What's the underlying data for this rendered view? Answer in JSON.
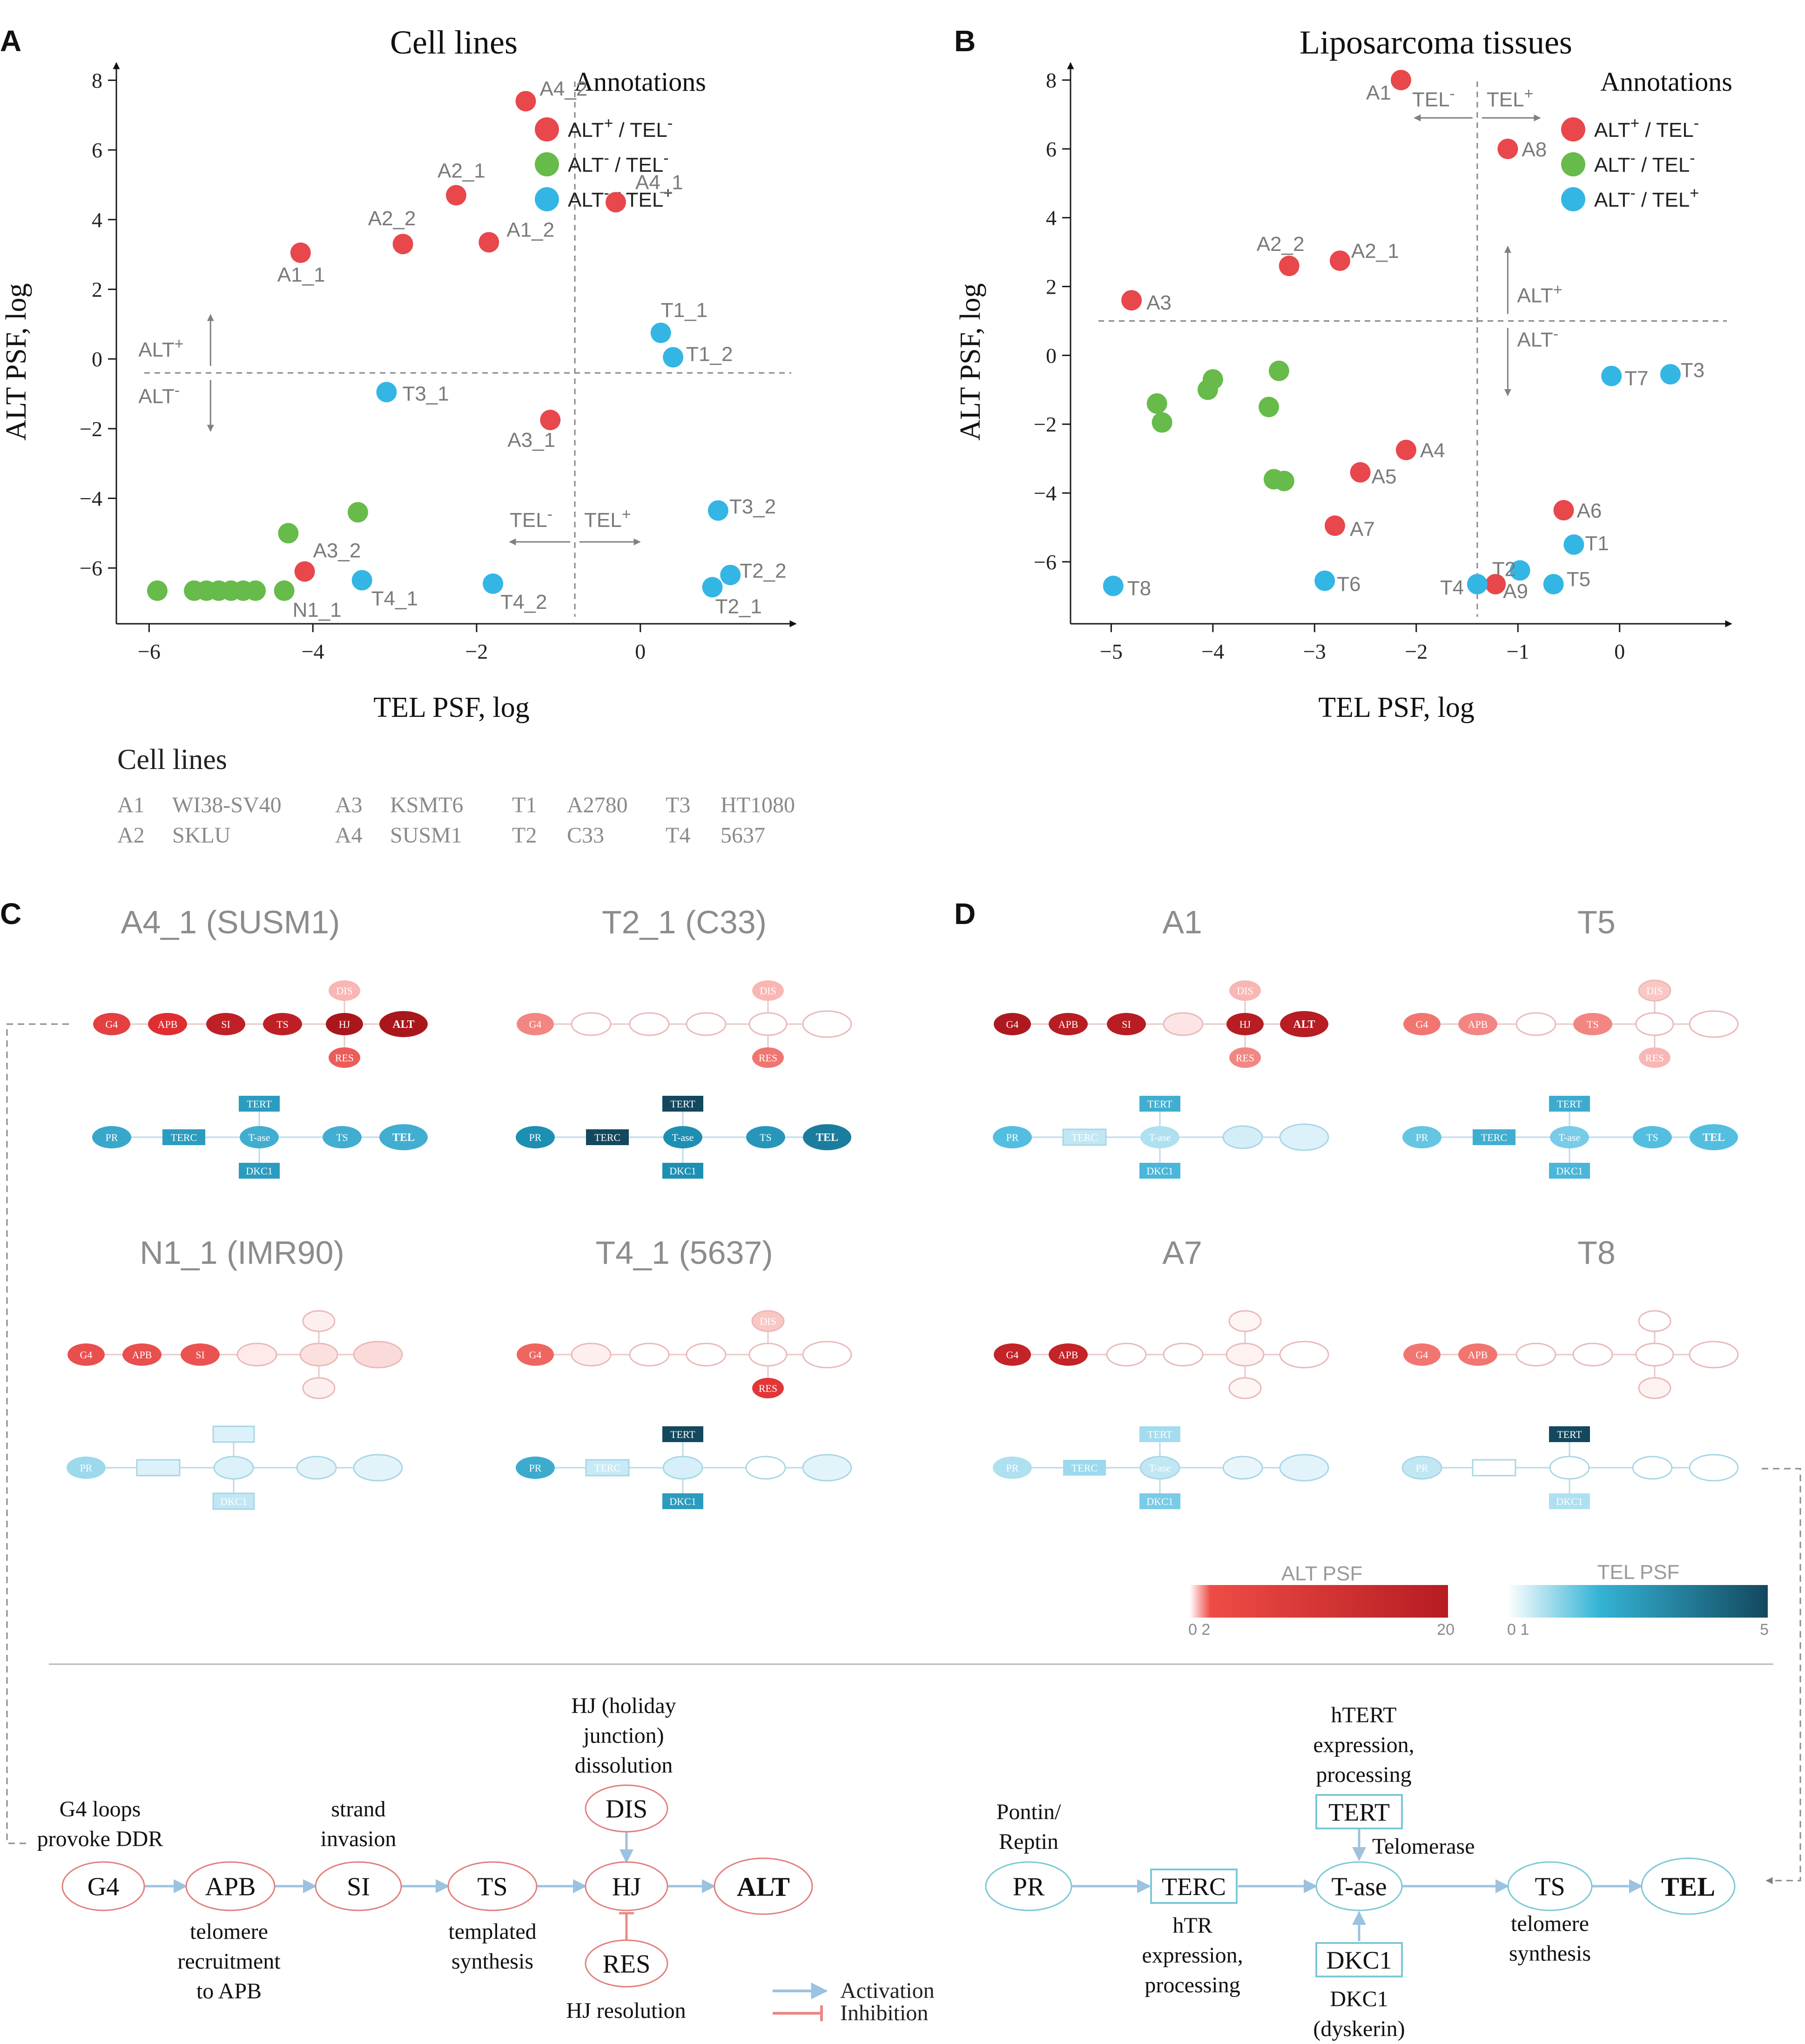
{
  "colors": {
    "alt_pos": "#e8474b",
    "alt_neg_tel_neg": "#66bb4a",
    "tel_pos": "#34b6e4",
    "axis": "#1a1a1a",
    "gray_text": "#7a7a7a",
    "dash": "#888888",
    "alt_dark": "#b71c22",
    "tel_dark": "#13485e"
  },
  "panel_letters": {
    "a": "A",
    "b": "B",
    "c": "C",
    "d": "D"
  },
  "chart_data": [
    {
      "type": "scatter",
      "title": "Cell lines",
      "xlabel": "TEL PSF, log",
      "ylabel": "ALT PSF, log",
      "xlim": [
        -6.4,
        1.9
      ],
      "ylim": [
        -7.6,
        8.5
      ],
      "xticks": [
        -6,
        -4,
        -2,
        0
      ],
      "yticks": [
        8,
        6,
        4,
        2,
        0,
        -2,
        -4,
        -6
      ],
      "xtick_labels": [
        "−6",
        "−4",
        "−2",
        "0"
      ],
      "ytick_labels": [
        "8",
        "6",
        "4",
        "2",
        "0",
        "−2",
        "−4",
        "−6"
      ],
      "thresholds": {
        "x": -0.8,
        "y": -0.4
      },
      "quadrant_labels": {
        "alt_plus": "ALT",
        "alt_minus": "ALT",
        "tel_minus": "TEL",
        "tel_plus": "TEL",
        "plus": "+",
        "minus": "-"
      },
      "legend": {
        "title": "Annotations",
        "entries": [
          {
            "group": "alt_pos",
            "alt": "ALT",
            "alt_sign": "+",
            "tel": "/ TEL",
            "tel_sign": "-"
          },
          {
            "group": "alt_neg_tel_neg",
            "alt": "ALT",
            "alt_sign": "-",
            "tel": "/ TEL",
            "tel_sign": "-"
          },
          {
            "group": "tel_pos",
            "alt": "ALT",
            "alt_sign": "-",
            "tel": "/ TEL",
            "tel_sign": "+"
          }
        ]
      },
      "series": [
        {
          "name": "ALT+/TEL-",
          "group": "alt_pos",
          "points": [
            {
              "x": -1.4,
              "y": 7.4,
              "label": "A4_2"
            },
            {
              "x": -0.3,
              "y": 4.5,
              "label": "A4_1"
            },
            {
              "x": -2.25,
              "y": 4.7,
              "label": "A2_1"
            },
            {
              "x": -1.85,
              "y": 3.35,
              "label": "A1_2"
            },
            {
              "x": -2.9,
              "y": 3.3,
              "label": "A2_2"
            },
            {
              "x": -4.15,
              "y": 3.05,
              "label": "A1_1"
            },
            {
              "x": -1.1,
              "y": -1.75,
              "label": "A3_1"
            },
            {
              "x": -4.1,
              "y": -6.1,
              "label": "A3_2"
            }
          ]
        },
        {
          "name": "ALT-/TEL-",
          "group": "alt_neg_tel_neg",
          "points": [
            {
              "x": -3.45,
              "y": -4.4,
              "label": ""
            },
            {
              "x": -4.3,
              "y": -5.0,
              "label": ""
            },
            {
              "x": -4.35,
              "y": -6.65,
              "label": "N1_1"
            },
            {
              "x": -5.9,
              "y": -6.65,
              "label": ""
            },
            {
              "x": -5.45,
              "y": -6.65,
              "label": ""
            },
            {
              "x": -5.3,
              "y": -6.65,
              "label": ""
            },
            {
              "x": -5.15,
              "y": -6.65,
              "label": ""
            },
            {
              "x": -5.0,
              "y": -6.65,
              "label": ""
            },
            {
              "x": -4.85,
              "y": -6.65,
              "label": ""
            },
            {
              "x": -4.7,
              "y": -6.65,
              "label": ""
            }
          ]
        },
        {
          "name": "ALT-/TEL+",
          "group": "tel_pos",
          "points": [
            {
              "x": 0.25,
              "y": 0.75,
              "label": "T1_1"
            },
            {
              "x": 0.4,
              "y": 0.05,
              "label": "T1_2"
            },
            {
              "x": -3.1,
              "y": -0.95,
              "label": "T3_1"
            },
            {
              "x": 0.95,
              "y": -4.35,
              "label": "T3_2"
            },
            {
              "x": 1.1,
              "y": -6.2,
              "label": "T2_2"
            },
            {
              "x": 0.88,
              "y": -6.55,
              "label": "T2_1"
            },
            {
              "x": -3.4,
              "y": -6.35,
              "label": "T4_1"
            },
            {
              "x": -1.8,
              "y": -6.45,
              "label": "T4_2"
            }
          ]
        }
      ]
    },
    {
      "type": "scatter",
      "title": "Liposarcoma tissues",
      "xlabel": "TEL PSF, log",
      "ylabel": "ALT PSF, log",
      "xlim": [
        -5.4,
        1.1
      ],
      "ylim": [
        -7.8,
        8.5
      ],
      "xticks": [
        -5,
        -4,
        -3,
        -2,
        -1,
        0
      ],
      "yticks": [
        8,
        6,
        4,
        2,
        0,
        -2,
        -4,
        -6
      ],
      "xtick_labels": [
        "−5",
        "−4",
        "−3",
        "−2",
        "−1",
        "0"
      ],
      "ytick_labels": [
        "8",
        "6",
        "4",
        "2",
        "0",
        "−2",
        "−4",
        "−6"
      ],
      "thresholds": {
        "x": -1.4,
        "y": 1.0
      },
      "quadrant_labels": {
        "alt_plus": "ALT",
        "alt_minus": "ALT",
        "tel_minus": "TEL",
        "tel_plus": "TEL",
        "plus": "+",
        "minus": "-"
      },
      "legend": {
        "title": "Annotations",
        "entries": [
          {
            "group": "alt_pos",
            "alt": "ALT",
            "alt_sign": "+",
            "tel": "/ TEL",
            "tel_sign": "-"
          },
          {
            "group": "alt_neg_tel_neg",
            "alt": "ALT",
            "alt_sign": "-",
            "tel": "/ TEL",
            "tel_sign": "-"
          },
          {
            "group": "tel_pos",
            "alt": "ALT",
            "alt_sign": "-",
            "tel": "/ TEL",
            "tel_sign": "+"
          }
        ]
      },
      "series": [
        {
          "name": "ALT+/TEL-",
          "group": "alt_pos",
          "points": [
            {
              "x": -2.15,
              "y": 8.0,
              "label": "A1"
            },
            {
              "x": -1.1,
              "y": 6.0,
              "label": "A8"
            },
            {
              "x": -3.25,
              "y": 2.6,
              "label": "A2_2"
            },
            {
              "x": -2.75,
              "y": 2.75,
              "label": "A2_1"
            },
            {
              "x": -4.8,
              "y": 1.6,
              "label": "A3"
            },
            {
              "x": -2.1,
              "y": -2.75,
              "label": "A4"
            },
            {
              "x": -2.55,
              "y": -3.4,
              "label": "A5"
            },
            {
              "x": -2.8,
              "y": -4.95,
              "label": "A7"
            },
            {
              "x": -0.55,
              "y": -4.5,
              "label": "A6"
            },
            {
              "x": -1.22,
              "y": -6.65,
              "label": "A9"
            }
          ]
        },
        {
          "name": "ALT-/TEL-",
          "group": "alt_neg_tel_neg",
          "points": [
            {
              "x": -4.0,
              "y": -0.7,
              "label": ""
            },
            {
              "x": -4.05,
              "y": -1.0,
              "label": ""
            },
            {
              "x": -3.35,
              "y": -0.45,
              "label": ""
            },
            {
              "x": -4.55,
              "y": -1.4,
              "label": ""
            },
            {
              "x": -4.5,
              "y": -1.95,
              "label": ""
            },
            {
              "x": -3.45,
              "y": -1.5,
              "label": ""
            },
            {
              "x": -3.4,
              "y": -3.6,
              "label": ""
            },
            {
              "x": -3.3,
              "y": -3.65,
              "label": ""
            }
          ]
        },
        {
          "name": "ALT-/TEL+",
          "group": "tel_pos",
          "points": [
            {
              "x": -0.08,
              "y": -0.6,
              "label": "T7"
            },
            {
              "x": 0.5,
              "y": -0.55,
              "label": "T3"
            },
            {
              "x": -0.45,
              "y": -5.5,
              "label": "T1"
            },
            {
              "x": -0.98,
              "y": -6.25,
              "label": "T2"
            },
            {
              "x": -0.65,
              "y": -6.65,
              "label": "T5"
            },
            {
              "x": -2.9,
              "y": -6.55,
              "label": "T6"
            },
            {
              "x": -1.4,
              "y": -6.65,
              "label": "T4"
            },
            {
              "x": -4.98,
              "y": -6.7,
              "label": "T8"
            }
          ]
        }
      ]
    }
  ],
  "cell_lines_table": {
    "title": "Cell lines",
    "entries": [
      {
        "code": "A1",
        "name": "WI38-SV40"
      },
      {
        "code": "A2",
        "name": "SKLU"
      },
      {
        "code": "A3",
        "name": "KSMT6"
      },
      {
        "code": "A4",
        "name": "SUSM1"
      },
      {
        "code": "T1",
        "name": "A2780"
      },
      {
        "code": "T2",
        "name": "C33"
      },
      {
        "code": "T3",
        "name": "HT1080"
      },
      {
        "code": "T4",
        "name": "5637"
      }
    ]
  },
  "mini_networks": {
    "alt_node_labels": {
      "g4": "G4",
      "apb": "APB",
      "si": "SI",
      "ts": "TS",
      "hj": "HJ",
      "alt": "ALT",
      "dis": "DIS",
      "res": "RES"
    },
    "tel_node_labels": {
      "pr": "PR",
      "terc": "TERC",
      "tase": "T-ase",
      "ts": "TS",
      "tel": "TEL",
      "tert": "TERT",
      "dkc1": "DKC1"
    },
    "panels": [
      {
        "title": "A4_1 (SUSM1)",
        "alt": {
          "g4": 0.7,
          "apb": 0.8,
          "si": 0.92,
          "ts": 0.92,
          "hj": 1.0,
          "alt": 1.0,
          "dis": 0.25,
          "res": 0.55
        },
        "tel": {
          "pr": 0.65,
          "terc": 0.72,
          "tase": 0.6,
          "ts": 0.6,
          "tel": 0.6,
          "tert": 0.72,
          "dkc1": 0.72
        }
      },
      {
        "title": "T2_1 (C33)",
        "alt": {
          "g4": 0.4,
          "apb": 0.0,
          "si": 0.0,
          "ts": 0.0,
          "hj": 0.0,
          "alt": 0.0,
          "dis": 0.25,
          "res": 0.45
        },
        "tel": {
          "pr": 0.8,
          "terc": 1.0,
          "tase": 0.8,
          "ts": 0.75,
          "tel": 0.85,
          "tert": 1.0,
          "dkc1": 0.8
        }
      },
      {
        "title": "N1_1 (IMR90)",
        "alt": {
          "g4": 0.62,
          "apb": 0.62,
          "si": 0.6,
          "ts": 0.08,
          "hj": 0.12,
          "alt": 0.14,
          "dis": 0.06,
          "res": 0.06
        },
        "tel": {
          "pr": 0.3,
          "terc": 0.12,
          "tase": 0.12,
          "ts": 0.1,
          "tel": 0.1,
          "tert": 0.12,
          "dkc1": 0.2
        }
      },
      {
        "title": "T4_1 (5637)",
        "alt": {
          "g4": 0.5,
          "apb": 0.06,
          "si": 0.0,
          "ts": 0.0,
          "hj": 0.0,
          "alt": 0.0,
          "dis": 0.2,
          "res": 0.75
        },
        "tel": {
          "pr": 0.62,
          "terc": 0.18,
          "tase": 0.14,
          "ts": 0.0,
          "tel": 0.1,
          "tert": 1.0,
          "dkc1": 0.72
        }
      },
      {
        "title": "A1",
        "alt": {
          "g4": 0.98,
          "apb": 0.95,
          "si": 0.95,
          "ts": 0.1,
          "hj": 0.95,
          "alt": 0.95,
          "dis": 0.25,
          "res": 0.4
        },
        "tel": {
          "pr": 0.5,
          "terc": 0.2,
          "tase": 0.25,
          "ts": 0.15,
          "tel": 0.12,
          "tert": 0.6,
          "dkc1": 0.55
        }
      },
      {
        "title": "T5",
        "alt": {
          "g4": 0.45,
          "apb": 0.4,
          "si": 0.0,
          "ts": 0.4,
          "hj": 0.0,
          "alt": 0.0,
          "dis": 0.2,
          "res": 0.25
        },
        "tel": {
          "pr": 0.45,
          "terc": 0.6,
          "tase": 0.4,
          "ts": 0.5,
          "tel": 0.5,
          "tert": 0.62,
          "dkc1": 0.55
        }
      },
      {
        "title": "A7",
        "alt": {
          "g4": 0.9,
          "apb": 0.9,
          "si": 0.0,
          "ts": 0.0,
          "hj": 0.05,
          "alt": 0.0,
          "dis": 0.04,
          "res": 0.04
        },
        "tel": {
          "pr": 0.25,
          "terc": 0.3,
          "tase": 0.2,
          "ts": 0.08,
          "tel": 0.1,
          "tert": 0.28,
          "dkc1": 0.4
        }
      },
      {
        "title": "T8",
        "alt": {
          "g4": 0.45,
          "apb": 0.45,
          "si": 0.0,
          "ts": 0.0,
          "hj": 0.0,
          "alt": 0.0,
          "dis": 0.0,
          "res": 0.05
        },
        "tel": {
          "pr": 0.2,
          "terc": 0.0,
          "tase": 0.0,
          "ts": 0.0,
          "tel": 0.0,
          "tert": 1.0,
          "dkc1": 0.25
        }
      }
    ]
  },
  "colorbars": {
    "alt": {
      "title": "ALT PSF",
      "min_label": "0 2",
      "max_label": "20"
    },
    "tel": {
      "title": "TEL PSF",
      "min_label": "0 1",
      "max_label": "5"
    }
  },
  "alt_pathway": {
    "nodes": {
      "g4": "G4",
      "apb": "APB",
      "si": "SI",
      "ts": "TS",
      "hj": "HJ",
      "alt": "ALT",
      "dis": "DIS",
      "res": "RES"
    },
    "annotations": {
      "g4": [
        "G4 loops",
        "provoke DDR"
      ],
      "apb": [
        "telomere",
        "recruitment",
        "to APB"
      ],
      "si": [
        "strand",
        "invasion"
      ],
      "ts": [
        "templated",
        "synthesis"
      ],
      "dis": [
        "HJ (holiday",
        "junction)",
        "dissolution"
      ],
      "res": [
        "HJ  resolution"
      ]
    }
  },
  "tel_pathway": {
    "nodes": {
      "pr": "PR",
      "terc": "TERC",
      "tase": "T-ase",
      "ts": "TS",
      "tel": "TEL",
      "tert": "TERT",
      "dkc1": "DKC1"
    },
    "annotations": {
      "pr": [
        "Pontin/",
        "Reptin"
      ],
      "terc": [
        "hTR",
        "expression,",
        "processing"
      ],
      "tert": [
        "hTERT",
        "expression,",
        "processing"
      ],
      "telomerase": [
        "Telomerase"
      ],
      "ts": [
        "telomere",
        "synthesis"
      ],
      "dkc1": [
        "DKC1",
        "(dyskerin)"
      ]
    }
  },
  "edge_legend": {
    "activation": "Activation",
    "inhibition": "Inhibition"
  }
}
